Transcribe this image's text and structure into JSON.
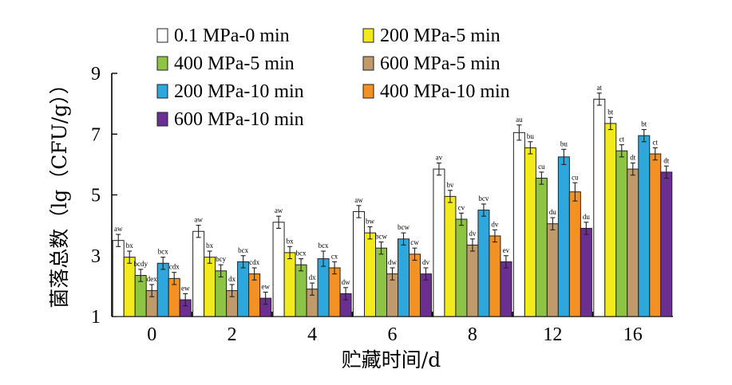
{
  "chart_data": {
    "type": "bar",
    "xlabel": "贮藏时间/d",
    "ylabel": "菌落总数（lg（CFU/g））",
    "ylim": [
      1,
      9
    ],
    "yticks": [
      1,
      3,
      5,
      7,
      9
    ],
    "categories": [
      "0",
      "2",
      "4",
      "6",
      "8",
      "12",
      "16"
    ],
    "legend_position": "top-left",
    "series": [
      {
        "name": "0.1 MPa-0 min",
        "color": "#ffffff",
        "values": [
          3.5,
          3.8,
          4.1,
          4.45,
          5.85,
          7.05,
          8.15
        ],
        "errors": [
          0.2,
          0.2,
          0.2,
          0.2,
          0.2,
          0.25,
          0.2
        ],
        "labels": [
          "aw",
          "aw",
          "aw",
          "aw",
          "av",
          "au",
          "at"
        ]
      },
      {
        "name": "200 MPa-5 min",
        "color": "#f2ea1d",
        "values": [
          2.95,
          2.95,
          3.1,
          3.75,
          4.95,
          6.55,
          7.35
        ],
        "errors": [
          0.2,
          0.2,
          0.2,
          0.2,
          0.2,
          0.2,
          0.2
        ],
        "labels": [
          "bx",
          "bx",
          "bx",
          "bw",
          "bv",
          "bu",
          "bt"
        ]
      },
      {
        "name": "400 MPa-5 min",
        "color": "#8dc443",
        "values": [
          2.35,
          2.5,
          2.7,
          3.25,
          4.2,
          5.55,
          6.45
        ],
        "errors": [
          0.2,
          0.2,
          0.2,
          0.2,
          0.2,
          0.2,
          0.2
        ],
        "labels": [
          "bcdy",
          "bcy",
          "bcx",
          "bcw",
          "cv",
          "cu",
          "ct"
        ]
      },
      {
        "name": "600 MPa-5 min",
        "color": "#c19a6b",
        "values": [
          1.85,
          1.85,
          1.9,
          2.4,
          3.35,
          4.05,
          5.85
        ],
        "errors": [
          0.2,
          0.2,
          0.2,
          0.2,
          0.2,
          0.2,
          0.2
        ],
        "labels": [
          "dex",
          "dx",
          "dx",
          "dw",
          "dv",
          "du",
          "dt"
        ]
      },
      {
        "name": "200 MPa-10 min",
        "color": "#2da7dc",
        "values": [
          2.75,
          2.8,
          2.9,
          3.55,
          4.5,
          6.25,
          6.95
        ],
        "errors": [
          0.2,
          0.2,
          0.25,
          0.2,
          0.2,
          0.25,
          0.2
        ],
        "labels": [
          "bcx",
          "bcx",
          "bcx",
          "bcw",
          "bcv",
          "bu",
          "bt"
        ]
      },
      {
        "name": "400 MPa-10 min",
        "color": "#f39125",
        "values": [
          2.25,
          2.4,
          2.6,
          3.05,
          3.65,
          5.1,
          6.35
        ],
        "errors": [
          0.2,
          0.2,
          0.2,
          0.2,
          0.2,
          0.3,
          0.2
        ],
        "labels": [
          "cdx",
          "cdx",
          "cx",
          "cw",
          "dv",
          "cu",
          "ct"
        ]
      },
      {
        "name": "600 MPa-10 min",
        "color": "#6b2f91",
        "values": [
          1.55,
          1.6,
          1.75,
          2.4,
          2.8,
          3.9,
          5.75
        ],
        "errors": [
          0.2,
          0.2,
          0.2,
          0.2,
          0.2,
          0.2,
          0.2
        ],
        "labels": [
          "ew",
          "ew",
          "dw",
          "dv",
          "ev",
          "du",
          "dt"
        ]
      }
    ]
  }
}
